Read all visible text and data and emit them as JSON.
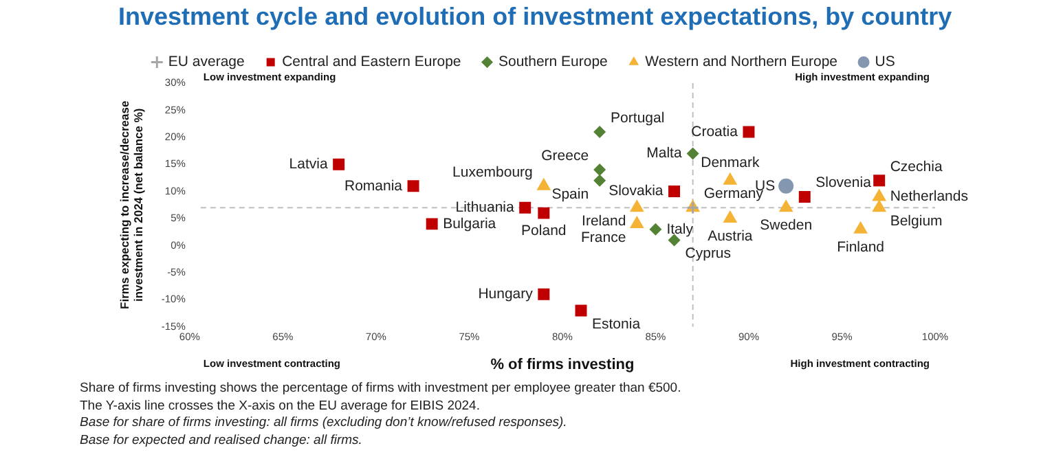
{
  "chart_data": {
    "type": "scatter",
    "title": "Investment cycle and evolution of investment expectations, by country",
    "xlabel": "% of firms investing",
    "ylabel": "Firms expecting to increase/decrease investment in 2024 (net balance %)",
    "xlim": [
      60,
      100
    ],
    "xticks": [
      {
        "value": 60,
        "label": "60%"
      },
      {
        "value": 65,
        "label": "65%"
      },
      {
        "value": 70,
        "label": "70%"
      },
      {
        "value": 75,
        "label": "75%"
      },
      {
        "value": 80,
        "label": "80%"
      },
      {
        "value": 85,
        "label": "85%"
      },
      {
        "value": 90,
        "label": "90%"
      },
      {
        "value": 95,
        "label": "95%"
      },
      {
        "value": 100,
        "label": "100%"
      }
    ],
    "ylim": [
      -15,
      30
    ],
    "yticks": [
      {
        "value": -15,
        "label": "-15%"
      },
      {
        "value": -10,
        "label": "-10%"
      },
      {
        "value": -5,
        "label": "-5%"
      },
      {
        "value": 0,
        "label": "0%"
      },
      {
        "value": 5,
        "label": "5%"
      },
      {
        "value": 10,
        "label": "10%"
      },
      {
        "value": 15,
        "label": "15%"
      },
      {
        "value": 20,
        "label": "20%"
      },
      {
        "value": 25,
        "label": "25%"
      },
      {
        "value": 30,
        "label": "30%"
      }
    ],
    "grid": false,
    "legend": "top",
    "series": [
      {
        "name": "EU average",
        "color": "#a6a6a6",
        "marker": "cross",
        "x": [
          87
        ],
        "values": [
          7
        ]
      },
      {
        "name": "Central and Eastern Europe",
        "color": "#c00000",
        "marker": "square",
        "x": [
          68,
          72,
          73,
          78,
          79,
          79,
          81,
          86,
          90,
          93,
          97
        ],
        "values": [
          15,
          11,
          4,
          7,
          6,
          -9,
          -12,
          10,
          21,
          9,
          12
        ]
      },
      {
        "name": "Southern Europe",
        "color": "#548235",
        "marker": "diamond",
        "x": [
          82,
          82,
          82,
          85,
          86,
          87
        ],
        "values": [
          21,
          14,
          12,
          3,
          1,
          17
        ]
      },
      {
        "name": "Western and Northern Europe",
        "color": "#f5b335",
        "marker": "triangle",
        "x": [
          79,
          84,
          84,
          87,
          89,
          89,
          92,
          96,
          97,
          97
        ],
        "values": [
          11,
          7,
          4,
          7,
          12,
          5,
          7,
          3,
          9,
          7
        ]
      },
      {
        "name": "US",
        "color": "#8497b0",
        "marker": "circle",
        "x": [
          92
        ],
        "values": [
          11
        ]
      }
    ],
    "ref_lines": [
      {
        "axis": "x",
        "value": 87,
        "color": "#bfbfbf",
        "line_style": "dashed"
      },
      {
        "axis": "y",
        "value": 7,
        "color": "#bfbfbf",
        "line_style": "dashed"
      }
    ],
    "annotations": [
      "Low investment expanding",
      "High investment expanding",
      "Low investment contracting",
      "High investment contracting",
      "Share of firms investing shows the percentage of firms with investment per employee greater than €500.",
      "The Y-axis line crosses the X-axis on the EU average for EIBIS 2024.",
      "Base for share of firms investing: all firms (excluding don’t know/refused responses).",
      "Base for expected and realised change: all firms.",
      {
        "text": "Latvia",
        "x": 68,
        "y": 15
      },
      {
        "text": "Romania",
        "x": 72,
        "y": 11
      },
      {
        "text": "Bulgaria",
        "x": 73,
        "y": 4
      },
      {
        "text": "Lithuania",
        "x": 78,
        "y": 7
      },
      {
        "text": "Poland",
        "x": 79,
        "y": 6
      },
      {
        "text": "Hungary",
        "x": 79,
        "y": -9
      },
      {
        "text": "Estonia",
        "x": 81,
        "y": -12
      },
      {
        "text": "Luxembourg",
        "x": 79,
        "y": 11
      },
      {
        "text": "Portugal",
        "x": 82,
        "y": 21
      },
      {
        "text": "Greece",
        "x": 82,
        "y": 14
      },
      {
        "text": "Spain",
        "x": 82,
        "y": 12
      },
      {
        "text": "Slovakia",
        "x": 86,
        "y": 10
      },
      {
        "text": "Ireland",
        "x": 84,
        "y": 7
      },
      {
        "text": "France",
        "x": 84,
        "y": 4
      },
      {
        "text": "Italy",
        "x": 85,
        "y": 3
      },
      {
        "text": "Cyprus",
        "x": 86,
        "y": 1
      },
      {
        "text": "Croatia",
        "x": 90,
        "y": 21
      },
      {
        "text": "Malta",
        "x": 87,
        "y": 17
      },
      {
        "text": "Denmark",
        "x": 89,
        "y": 12
      },
      {
        "text": "US",
        "x": 92,
        "y": 11
      },
      {
        "text": "Slovenia",
        "x": 93,
        "y": 9
      },
      {
        "text": "Czechia",
        "x": 97,
        "y": 12
      },
      {
        "text": "Netherlands",
        "x": 97,
        "y": 9
      },
      {
        "text": "Belgium",
        "x": 97,
        "y": 7
      },
      {
        "text": "Germany",
        "x": 87,
        "y": 7
      },
      {
        "text": "Austria",
        "x": 89,
        "y": 5
      },
      {
        "text": "Sweden",
        "x": 92,
        "y": 7
      },
      {
        "text": "Finland",
        "x": 96,
        "y": 3
      }
    ]
  }
}
